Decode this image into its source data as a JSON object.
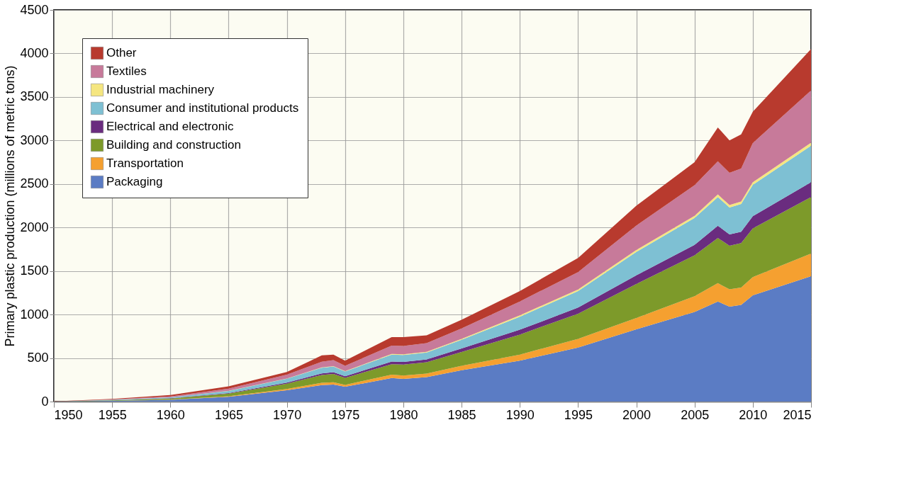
{
  "chart_data": {
    "type": "area",
    "stacked": true,
    "ylabel": "Primary plastic production (millions of metric tons)",
    "x": [
      1950,
      1955,
      1960,
      1965,
      1970,
      1973,
      1974,
      1975,
      1979,
      1980,
      1982,
      1985,
      1990,
      1995,
      2000,
      2005,
      2007,
      2008,
      2009,
      2010,
      2015
    ],
    "series": [
      {
        "name": "Packaging",
        "color": "#5b7cc4",
        "values": [
          1,
          8,
          20,
          55,
          130,
          190,
          195,
          170,
          270,
          260,
          280,
          360,
          470,
          620,
          830,
          1030,
          1150,
          1090,
          1110,
          1220,
          1440
        ]
      },
      {
        "name": "Transportation",
        "color": "#f5a030",
        "values": [
          0,
          1,
          3,
          6,
          15,
          25,
          27,
          22,
          40,
          40,
          42,
          50,
          70,
          100,
          130,
          180,
          210,
          200,
          200,
          210,
          260
        ]
      },
      {
        "name": "Building and construction",
        "color": "#7d9a2a",
        "values": [
          0,
          5,
          12,
          30,
          60,
          90,
          95,
          80,
          120,
          125,
          130,
          160,
          230,
          290,
          390,
          470,
          520,
          500,
          510,
          560,
          650
        ]
      },
      {
        "name": "Electrical and electronic",
        "color": "#6a2c7f",
        "values": [
          0,
          1,
          3,
          6,
          12,
          18,
          20,
          18,
          30,
          30,
          32,
          40,
          55,
          70,
          100,
          120,
          140,
          130,
          130,
          140,
          170
        ]
      },
      {
        "name": "Consumer and institutional products",
        "color": "#7ec0d3",
        "values": [
          0,
          5,
          10,
          25,
          45,
          65,
          65,
          55,
          80,
          80,
          80,
          100,
          150,
          190,
          270,
          310,
          330,
          310,
          320,
          360,
          420
        ]
      },
      {
        "name": "Industrial machinery",
        "color": "#f5e680",
        "values": [
          0,
          0,
          1,
          2,
          3,
          5,
          5,
          5,
          8,
          8,
          8,
          10,
          15,
          18,
          22,
          25,
          30,
          28,
          28,
          30,
          35
        ]
      },
      {
        "name": "Textiles",
        "color": "#c77a9a",
        "values": [
          0,
          4,
          10,
          25,
          45,
          65,
          70,
          60,
          95,
          95,
          100,
          120,
          160,
          200,
          280,
          350,
          380,
          370,
          380,
          450,
          600
        ]
      },
      {
        "name": "Other",
        "color": "#b83a2e",
        "values": [
          1,
          6,
          16,
          26,
          30,
          72,
          63,
          60,
          97,
          102,
          88,
          100,
          120,
          162,
          228,
          265,
          390,
          372,
          392,
          360,
          475
        ]
      }
    ],
    "xlim": [
      1950,
      2015
    ],
    "xticks": [
      1950,
      1955,
      1960,
      1965,
      1970,
      1975,
      1980,
      1985,
      1990,
      1995,
      2000,
      2005,
      2010,
      2015
    ],
    "ylim": [
      0,
      4500
    ],
    "yticks": [
      0,
      500,
      1000,
      1500,
      2000,
      2500,
      3000,
      3500,
      4000,
      4500
    ],
    "grid": true,
    "legend": "top left"
  }
}
